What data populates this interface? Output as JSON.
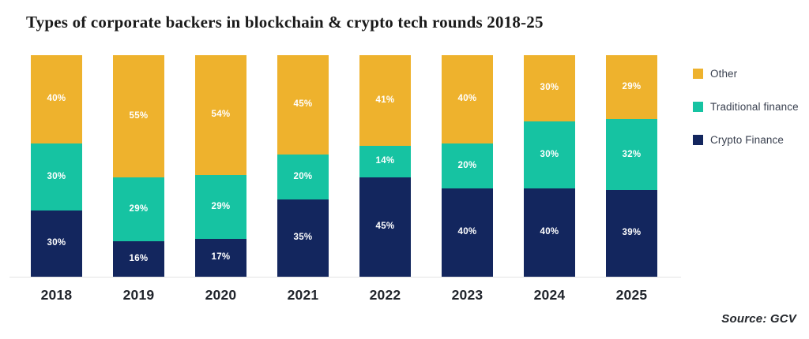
{
  "title": "Types of corporate backers in blockchain & crypto tech rounds 2018-25",
  "source_note": "Source: GCV",
  "colors": {
    "other": "#EEB22D",
    "traditional_finance": "#16C3A2",
    "crypto_finance": "#13265E",
    "axis_line": "#e4e4e4",
    "value_label_text": "#ffffff"
  },
  "chart_data": {
    "type": "bar",
    "subtype": "stacked-percent-column",
    "title": "Types of corporate backers in blockchain & crypto tech rounds 2018-25",
    "categories": [
      "2018",
      "2019",
      "2020",
      "2021",
      "2022",
      "2023",
      "2024",
      "2025"
    ],
    "series": [
      {
        "name": "Other",
        "color": "#EEB22D",
        "values": [
          40,
          55,
          54,
          45,
          41,
          40,
          30,
          29
        ]
      },
      {
        "name": "Traditional finance",
        "color": "#16C3A2",
        "values": [
          30,
          29,
          29,
          20,
          14,
          20,
          30,
          32
        ]
      },
      {
        "name": "Crypto Finance",
        "color": "#13265E",
        "values": [
          30,
          16,
          17,
          35,
          45,
          40,
          40,
          39
        ]
      }
    ],
    "stack_order": "top-to-bottom",
    "value_suffix": "%",
    "data_labels": "inside-center-white",
    "xlabel": "",
    "ylabel": "",
    "ylim": [
      0,
      100
    ],
    "grid": false,
    "y_axis_visible": false,
    "legend_position": "right"
  }
}
